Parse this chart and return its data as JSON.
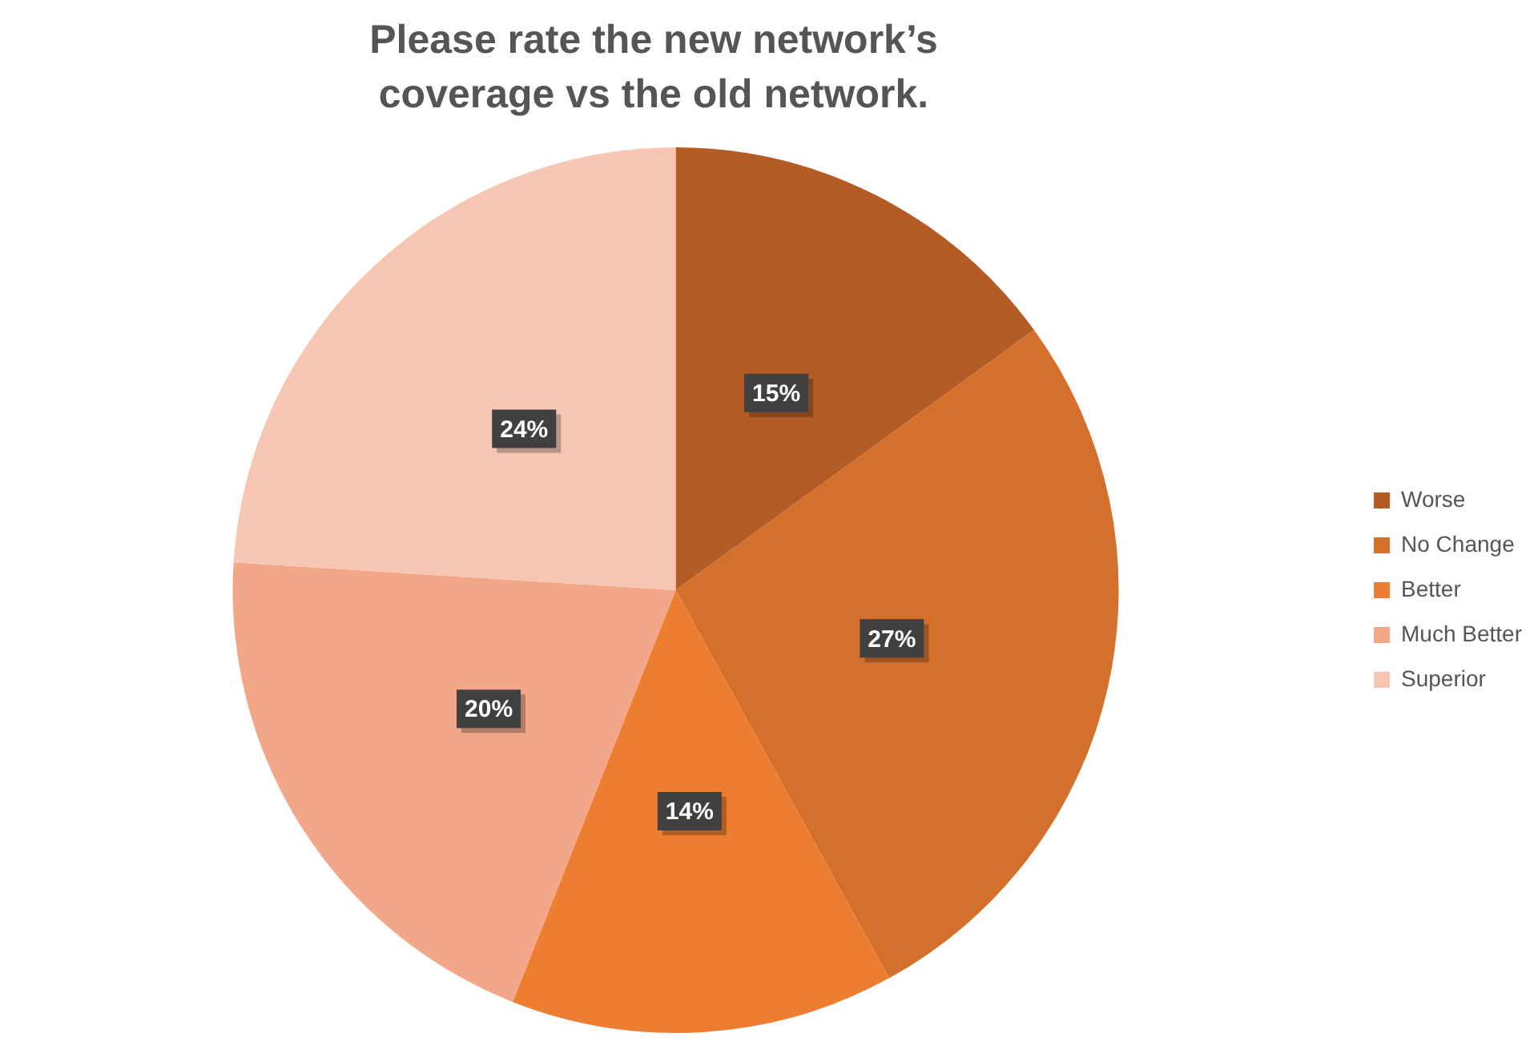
{
  "chart_data": {
    "type": "pie",
    "title": "Please rate the new network’s coverage vs the old network.",
    "categories": [
      "Worse",
      "No Change",
      "Better",
      "Much Better",
      "Superior"
    ],
    "values": [
      15,
      27,
      14,
      20,
      24
    ],
    "colors": [
      "#b35c25",
      "#d4702b",
      "#ed7d31",
      "#f3a789",
      "#f6c6b3"
    ],
    "value_labels": [
      "15%",
      "27%",
      "14%",
      "20%",
      "24%"
    ],
    "legend": "right"
  }
}
